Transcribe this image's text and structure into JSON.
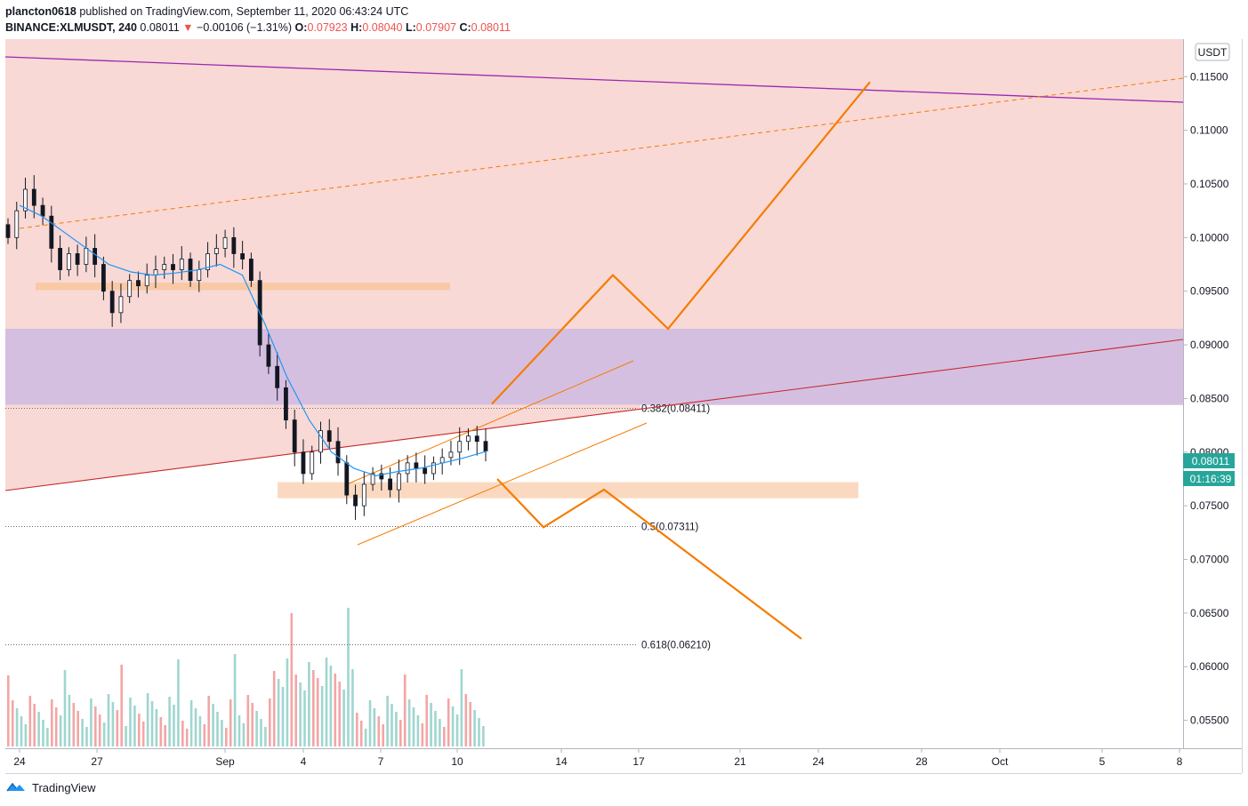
{
  "header": {
    "author": "plancton0618",
    "published_text": "published on TradingView.com, September 11, 2020 06:43:24 UTC",
    "symbol": "BINANCE:XLMUSDT, 240",
    "last_price": "0.08011",
    "change": "−0.00106 (−1.31%)",
    "o_label": "O:",
    "o_value": "0.07923",
    "h_label": "H:",
    "h_value": "0.08040",
    "l_label": "L:",
    "l_value": "0.07907",
    "c_label": "C:",
    "c_value": "0.08011"
  },
  "price_axis": {
    "currency_badge": "USDT",
    "current_price_tag": "0.08011",
    "countdown_tag": "01:16:39",
    "tag_color": "#26a69a"
  },
  "chart_data": {
    "type": "candlestick",
    "symbol": "XLMUSDT",
    "interval": "240",
    "ylim": [
      0.0524,
      0.1185
    ],
    "price_ticks": [
      "0.11500",
      "0.11000",
      "0.10500",
      "0.10000",
      "0.09500",
      "0.09000",
      "0.08500",
      "0.08000",
      "0.07500",
      "0.07000",
      "0.06500",
      "0.06000",
      "0.05500"
    ],
    "time_ticks": [
      "24",
      "27",
      "Sep",
      "4",
      "7",
      "10",
      "14",
      "17",
      "21",
      "24",
      "28",
      "Oct",
      "5",
      "8"
    ],
    "candles_close_approx": [
      0.1,
      0.1025,
      0.1045,
      0.103,
      0.102,
      0.099,
      0.097,
      0.0985,
      0.0975,
      0.099,
      0.0975,
      0.095,
      0.093,
      0.0945,
      0.096,
      0.0955,
      0.0965,
      0.097,
      0.0975,
      0.097,
      0.098,
      0.096,
      0.097,
      0.0985,
      0.099,
      0.1,
      0.0985,
      0.098,
      0.096,
      0.09,
      0.088,
      0.086,
      0.083,
      0.08,
      0.078,
      0.08,
      0.082,
      0.081,
      0.079,
      0.076,
      0.075,
      0.077,
      0.078,
      0.0775,
      0.0765,
      0.078,
      0.079,
      0.0785,
      0.078,
      0.079,
      0.0795,
      0.08,
      0.081,
      0.0815,
      0.081,
      0.0801
    ],
    "ema_approx": [
      0.103,
      0.102,
      0.1005,
      0.099,
      0.0975,
      0.0968,
      0.0965,
      0.0967,
      0.097,
      0.0975,
      0.0965,
      0.092,
      0.087,
      0.083,
      0.08,
      0.0785,
      0.0778,
      0.0782,
      0.0785,
      0.079,
      0.0795,
      0.0801
    ],
    "fib_levels": [
      {
        "ratio": "0.382",
        "price": 0.08411,
        "label": "0.382(0.08411)"
      },
      {
        "ratio": "0.5",
        "price": 0.07311,
        "label": "0.5(0.07311)"
      },
      {
        "ratio": "0.618",
        "price": 0.0621,
        "label": "0.618(0.06210)"
      }
    ],
    "zones": [
      {
        "name": "resistance-zone",
        "from": 0.0844,
        "to": 0.1185,
        "color": "#f8d9d6"
      },
      {
        "name": "purple-zone",
        "from": 0.0844,
        "to": 0.0915,
        "color": "#c9b6e4"
      },
      {
        "name": "support-band-upper",
        "from": 0.0951,
        "to": 0.0958,
        "color": "#f9c9a6"
      },
      {
        "name": "support-band-lower",
        "from": 0.0757,
        "to": 0.0772,
        "color": "#fbd9c0"
      }
    ],
    "projection_up": [
      0.0845,
      0.0965,
      0.0915,
      0.1145
    ],
    "projection_down": [
      0.0775,
      0.073,
      0.0765,
      0.0626
    ],
    "colors": {
      "up": "#26a69a",
      "down": "#ef5350",
      "candle": "#131722",
      "ema": "#2196f3",
      "projection": "#f57c00"
    }
  },
  "footer": {
    "brand": "TradingView"
  }
}
